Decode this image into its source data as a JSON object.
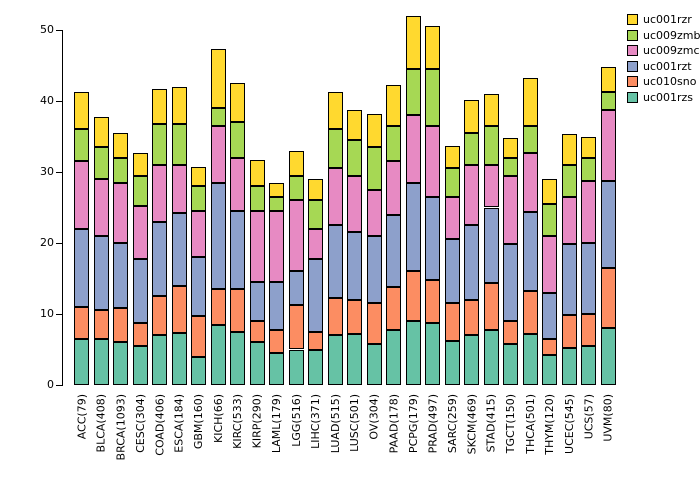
{
  "chart_data": {
    "type": "bar",
    "stacked": true,
    "title": "",
    "xlabel": "",
    "ylabel": "",
    "ylim": [
      0,
      52.5
    ],
    "yticks": [
      0,
      10,
      20,
      30,
      40,
      50
    ],
    "grid": false,
    "background": "#ffffff",
    "bar_border_color": "#000000",
    "legend_position": "top-right",
    "legend_order": [
      "uc001rzr",
      "uc009zmb",
      "uc009zmc",
      "uc001rzt",
      "uc010sno",
      "uc001rzs"
    ],
    "categories": [
      "ACC(79)",
      "BLCA(408)",
      "BRCA(1093)",
      "CESC(304)",
      "COAD(406)",
      "ESCA(184)",
      "GBM(160)",
      "KICH(66)",
      "KIRC(533)",
      "KIRP(290)",
      "LAML(179)",
      "LGG(516)",
      "LIHC(371)",
      "LUAD(515)",
      "LUSC(501)",
      "OV(304)",
      "PAAD(178)",
      "PCPG(179)",
      "PRAD(497)",
      "SARC(259)",
      "SKCM(469)",
      "STAD(415)",
      "TGCT(150)",
      "THCA(501)",
      "THYM(120)",
      "UCEC(545)",
      "UCS(57)",
      "UVM(80)"
    ],
    "series": [
      {
        "name": "uc001rzs",
        "color": "#66C2A5",
        "values": [
          6.5,
          6.5,
          6.0,
          5.5,
          7.0,
          7.3,
          4.0,
          8.5,
          7.5,
          6.0,
          4.5,
          5.0,
          5.0,
          7.0,
          7.2,
          5.8,
          7.8,
          9.0,
          8.8,
          6.2,
          7.0,
          7.7,
          5.8,
          7.2,
          4.2,
          5.2,
          5.5,
          8.0
        ]
      },
      {
        "name": "uc010sno",
        "color": "#FC8D62",
        "values": [
          4.5,
          4.0,
          4.8,
          3.2,
          5.5,
          6.7,
          5.7,
          5.0,
          6.0,
          3.0,
          3.3,
          6.3,
          2.5,
          5.3,
          4.8,
          5.7,
          6.0,
          7.0,
          6.0,
          5.3,
          5.0,
          6.6,
          3.2,
          6.1,
          2.3,
          4.6,
          4.5,
          8.5
        ]
      },
      {
        "name": "uc001rzt",
        "color": "#8DA0CB",
        "values": [
          11.0,
          10.5,
          9.2,
          9.1,
          10.5,
          10.2,
          8.3,
          15.0,
          11.0,
          5.5,
          6.7,
          4.7,
          10.3,
          10.2,
          9.5,
          9.5,
          10.2,
          12.5,
          11.7,
          9.0,
          10.5,
          10.7,
          10.8,
          11.0,
          6.5,
          10.0,
          10.0,
          12.3
        ]
      },
      {
        "name": "uc009zmc",
        "color": "#E78AC3",
        "values": [
          9.5,
          8.0,
          8.5,
          7.4,
          8.0,
          6.8,
          6.5,
          8.0,
          7.5,
          10.0,
          10.0,
          10.0,
          4.2,
          8.0,
          8.0,
          6.5,
          7.5,
          9.5,
          10.0,
          6.0,
          8.5,
          6.0,
          9.7,
          8.4,
          8.0,
          6.7,
          8.8,
          10.0
        ]
      },
      {
        "name": "uc009zmb",
        "color": "#A6D854",
        "values": [
          4.5,
          4.5,
          3.5,
          4.3,
          5.8,
          5.8,
          3.5,
          2.5,
          5.0,
          3.5,
          2.0,
          3.5,
          4.0,
          5.5,
          5.0,
          6.0,
          5.0,
          6.5,
          8.0,
          4.0,
          4.5,
          5.5,
          2.5,
          3.8,
          4.5,
          4.5,
          3.2,
          2.5
        ]
      },
      {
        "name": "uc001rzr",
        "color": "#FFD92F",
        "values": [
          5.3,
          4.3,
          3.5,
          3.2,
          4.9,
          5.2,
          2.7,
          8.3,
          5.5,
          3.7,
          2.0,
          3.5,
          3.0,
          5.2,
          4.2,
          4.7,
          5.8,
          7.5,
          6.0,
          3.1,
          4.7,
          4.5,
          2.8,
          6.8,
          3.5,
          4.3,
          3.0,
          3.5
        ]
      }
    ]
  }
}
